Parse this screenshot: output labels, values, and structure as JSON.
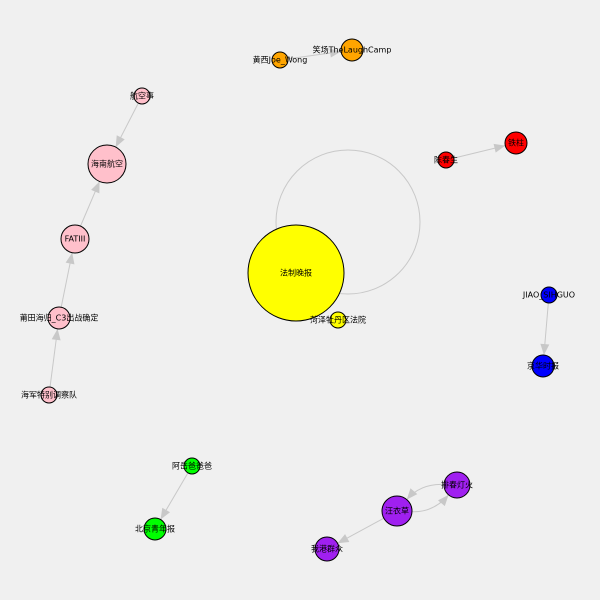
{
  "graph": {
    "nodes": [
      {
        "id": "fazhi",
        "label": "法制晚报",
        "color": "#ffff00"
      },
      {
        "id": "heze",
        "label": "菏泽牡丹区法院",
        "color": "#ffff00"
      },
      {
        "id": "huang",
        "label": "黄西Joe_Wong",
        "color": "#ffa500"
      },
      {
        "id": "xiaochang",
        "label": "笑场TheLaughCamp",
        "color": "#ffa500"
      },
      {
        "id": "hangkong",
        "label": "航空事",
        "color": "#ffc0cb"
      },
      {
        "id": "hainan",
        "label": "海南航空",
        "color": "#ffc0cb"
      },
      {
        "id": "fatiii",
        "label": "FATIII",
        "color": "#ffc0cb"
      },
      {
        "id": "putian",
        "label": "莆田海归_C3出战确定",
        "color": "#ffc0cb"
      },
      {
        "id": "haijun",
        "label": "海军特别调察队",
        "color": "#ffc0cb"
      },
      {
        "id": "chenjie",
        "label": "陈春生",
        "color": "#ff0000"
      },
      {
        "id": "tiezhu",
        "label": "铁柱",
        "color": "#ff0000"
      },
      {
        "id": "jiao",
        "label": "JIAO_SIHGUO",
        "color": "#0000ff"
      },
      {
        "id": "jing",
        "label": "京华时报",
        "color": "#0000ff"
      },
      {
        "id": "ahe",
        "label": "阿岳爸爸爸",
        "color": "#00ff00"
      },
      {
        "id": "beijing",
        "label": "北京青年报",
        "color": "#00ff00"
      },
      {
        "id": "zhiyi",
        "label": "汪衣草",
        "color": "#a020f0"
      },
      {
        "id": "paichun",
        "label": "排春灯火",
        "color": "#a020f0"
      },
      {
        "id": "xianggang",
        "label": "我港群众",
        "color": "#a020f0"
      }
    ],
    "edges": [
      {
        "from": "fazhi",
        "to": "fazhi",
        "type": "loop"
      },
      {
        "from": "huang",
        "to": "xiaochang"
      },
      {
        "from": "hangkong",
        "to": "hainan"
      },
      {
        "from": "fatiii",
        "to": "hainan"
      },
      {
        "from": "putian",
        "to": "fatiii"
      },
      {
        "from": "haijun",
        "to": "putian"
      },
      {
        "from": "chenjie",
        "to": "tiezhu"
      },
      {
        "from": "jiao",
        "to": "jing"
      },
      {
        "from": "ahe",
        "to": "beijing"
      },
      {
        "from": "zhiyi",
        "to": "paichun",
        "type": "curve"
      },
      {
        "from": "paichun",
        "to": "zhiyi",
        "type": "curve"
      },
      {
        "from": "zhiyi",
        "to": "xianggang"
      }
    ]
  }
}
